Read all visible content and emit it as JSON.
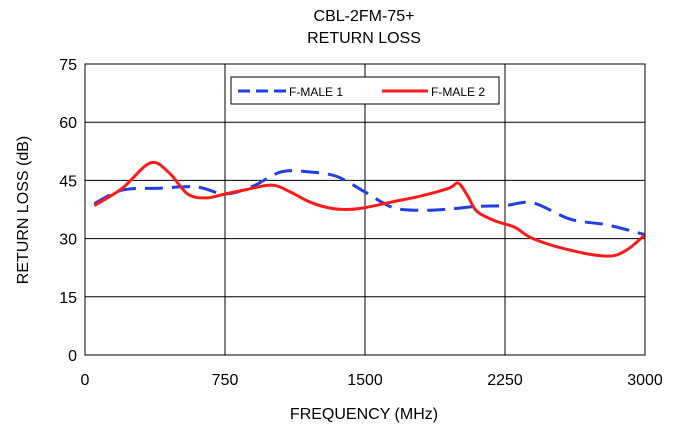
{
  "chart_data": {
    "type": "line",
    "title": "CBL-2FM-75+",
    "subtitle": "RETURN LOSS",
    "xlabel": "FREQUENCY (MHz)",
    "ylabel": "RETURN LOSS (dB)",
    "xlim": [
      0,
      3000
    ],
    "ylim": [
      0,
      75
    ],
    "xticks": [
      0,
      750,
      1500,
      2250,
      3000
    ],
    "xtick_labels": [
      "0",
      "750",
      "1500",
      "2250",
      "3000"
    ],
    "yticks": [
      0,
      15,
      30,
      45,
      60,
      75
    ],
    "ytick_labels": [
      "0",
      "15",
      "30",
      "45",
      "60",
      "75"
    ],
    "grid": true,
    "legend_position": "top-center",
    "series": [
      {
        "name": "F-MALE 1",
        "color": "#1f3fe0",
        "style": "dashed",
        "x": [
          50,
          200,
          400,
          600,
          750,
          900,
          1050,
          1200,
          1350,
          1500,
          1650,
          1800,
          1950,
          2100,
          2250,
          2400,
          2600,
          2800,
          3000
        ],
        "y": [
          39,
          42.5,
          43,
          43.3,
          41.5,
          43.5,
          47.2,
          47.2,
          46,
          42,
          38,
          37.3,
          37.6,
          38.3,
          38.5,
          39.2,
          35,
          33.5,
          31
        ]
      },
      {
        "name": "F-MALE 2",
        "color": "#ff1a1a",
        "style": "solid",
        "x": [
          50,
          200,
          350,
          450,
          550,
          650,
          750,
          850,
          1000,
          1100,
          1200,
          1300,
          1400,
          1500,
          1650,
          1800,
          1950,
          2000,
          2050,
          2100,
          2200,
          2300,
          2400,
          2600,
          2800,
          2900,
          3000
        ],
        "y": [
          38.5,
          43,
          49.5,
          47,
          41.5,
          40.5,
          41.5,
          42.5,
          43.8,
          42,
          39.5,
          38,
          37.5,
          38,
          39.5,
          41,
          43,
          44.3,
          41,
          37,
          34.5,
          33,
          30,
          27,
          25.5,
          27,
          31
        ]
      }
    ]
  }
}
